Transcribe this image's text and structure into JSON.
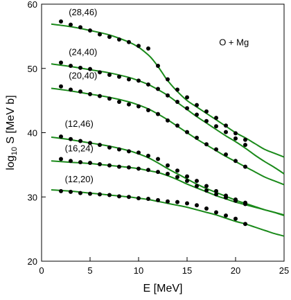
{
  "chart_data": {
    "type": "line",
    "title": "",
    "xlabel": "E [MeV]",
    "ylabel_parts": {
      "prefix": "log",
      "sub": "10",
      "suffix": " S [MeV b]"
    },
    "xlim": [
      0,
      25
    ],
    "ylim": [
      20,
      60
    ],
    "xticks": [
      0,
      5,
      10,
      15,
      20,
      25
    ],
    "yticks": [
      20,
      30,
      40,
      50,
      60
    ],
    "grid": false,
    "annotation": "O + Mg",
    "colors": {
      "curve": "#1a8a1a",
      "point": "#000000",
      "axis": "#000000"
    },
    "series": [
      {
        "name": "(28,46)",
        "label_at": [
          2.8,
          58.3
        ],
        "curve_x": [
          1,
          3,
          5,
          7,
          9,
          10,
          11,
          11.5,
          12,
          12.5,
          13,
          14,
          15,
          16,
          17,
          18,
          19,
          20,
          21,
          22,
          23,
          24,
          25
        ],
        "curve_y": [
          56.9,
          56.5,
          55.9,
          55.2,
          54.1,
          53.3,
          52.1,
          51.3,
          50.3,
          49.2,
          48.1,
          46.4,
          45.0,
          44.0,
          43.0,
          42.0,
          41.0,
          40.0,
          39.2,
          38.3,
          37.4,
          36.8,
          36.2
        ],
        "points_x": [
          2,
          3,
          4,
          5,
          6,
          7,
          8,
          9,
          10,
          11,
          12,
          13,
          14,
          15,
          16,
          17,
          18,
          19,
          20,
          21
        ],
        "points_y": [
          57.3,
          56.8,
          56.4,
          55.9,
          55.3,
          54.9,
          54.5,
          54.1,
          53.5,
          53.1,
          50.4,
          48.3,
          46.7,
          45.5,
          44.3,
          43.3,
          42.3,
          41.1,
          39.9,
          38.9
        ]
      },
      {
        "name": "(24,40)",
        "label_at": [
          2.8,
          52.1
        ],
        "curve_x": [
          1,
          3,
          5,
          7,
          9,
          10,
          11,
          12,
          13,
          14,
          15,
          16,
          17,
          18,
          19,
          20,
          21,
          22,
          23,
          24,
          25
        ],
        "curve_y": [
          50.7,
          50.3,
          49.8,
          49.3,
          48.6,
          48.1,
          47.5,
          46.7,
          45.8,
          44.7,
          43.6,
          42.5,
          41.5,
          40.5,
          39.5,
          38.6,
          37.6,
          36.5,
          35.5,
          34.6,
          33.6
        ],
        "points_x": [
          2,
          3,
          4,
          5,
          6,
          7,
          8,
          9,
          10,
          11,
          12,
          13,
          14,
          15,
          16,
          17,
          18,
          19,
          20,
          21
        ],
        "points_y": [
          50.9,
          50.4,
          50.1,
          49.9,
          49.4,
          49.0,
          48.7,
          48.3,
          48.1,
          47.5,
          46.8,
          45.8,
          44.8,
          43.8,
          42.8,
          41.8,
          41.0,
          40.1,
          39.1,
          38.1
        ]
      },
      {
        "name": "(20,40)",
        "label_at": [
          2.8,
          48.4
        ],
        "curve_x": [
          1,
          3,
          5,
          7,
          9,
          10,
          11,
          12,
          13,
          14,
          15,
          16,
          17,
          18,
          19,
          20,
          21,
          22,
          23,
          24,
          25
        ],
        "curve_y": [
          46.9,
          46.5,
          46.0,
          45.5,
          44.8,
          44.3,
          43.7,
          42.9,
          42.0,
          41.0,
          40.0,
          39.0,
          38.1,
          37.2,
          36.3,
          35.5,
          34.7,
          33.9,
          33.1,
          32.5,
          31.9
        ],
        "points_x": [
          2,
          3,
          4,
          5,
          6,
          7,
          8,
          9,
          10,
          11,
          12,
          13,
          14,
          15,
          16,
          17,
          18,
          19,
          20,
          21
        ],
        "points_y": [
          47.2,
          46.7,
          46.4,
          46.0,
          45.7,
          45.3,
          44.8,
          44.4,
          44.1,
          43.5,
          42.9,
          41.9,
          41.1,
          40.1,
          39.2,
          38.2,
          37.4,
          36.6,
          35.6,
          34.7
        ]
      },
      {
        "name": "(12,46)",
        "label_at": [
          2.4,
          40.9
        ],
        "curve_x": [
          1,
          3,
          5,
          7,
          9,
          10,
          11,
          12,
          13,
          14,
          15,
          16,
          17,
          18,
          19,
          20,
          21,
          22,
          23,
          24,
          25
        ],
        "curve_y": [
          39.3,
          38.9,
          38.4,
          37.9,
          37.2,
          36.7,
          36.1,
          35.3,
          34.4,
          33.6,
          32.8,
          32.0,
          31.3,
          30.7,
          30.1,
          29.5,
          29.0,
          28.5,
          28.0,
          27.6,
          27.2
        ],
        "points_x": [
          2,
          3,
          4,
          5,
          6,
          7,
          8,
          9,
          10,
          11,
          12,
          13,
          14,
          15,
          16,
          17,
          18,
          19,
          20,
          21
        ],
        "points_y": [
          39.4,
          39.0,
          38.7,
          38.4,
          38.1,
          37.7,
          37.4,
          37.1,
          36.9,
          36.4,
          35.9,
          34.9,
          34.1,
          33.2,
          32.5,
          31.7,
          30.9,
          30.2,
          29.6,
          29.1
        ]
      },
      {
        "name": "(16,24)",
        "label_at": [
          2.4,
          37.1
        ],
        "curve_x": [
          1,
          3,
          5,
          7,
          9,
          10,
          11,
          12,
          13,
          14,
          15,
          16,
          17,
          18,
          19,
          20,
          21,
          22,
          23,
          24,
          25
        ],
        "curve_y": [
          35.6,
          35.4,
          35.2,
          34.9,
          34.6,
          34.4,
          34.1,
          33.8,
          33.3,
          32.7,
          32.0,
          31.4,
          30.8,
          30.2,
          29.7,
          29.2,
          28.8,
          28.4,
          28.0,
          27.6,
          27.1
        ],
        "points_x": [
          2,
          3,
          4,
          5,
          6,
          7,
          8,
          9,
          10,
          11,
          12,
          13,
          14,
          15,
          16,
          17,
          18,
          19,
          20,
          21
        ],
        "points_y": [
          35.9,
          35.6,
          35.4,
          35.3,
          35.1,
          34.9,
          34.7,
          34.6,
          34.4,
          34.2,
          33.9,
          33.6,
          33.1,
          32.5,
          31.7,
          31.0,
          30.4,
          29.9,
          29.4,
          28.9
        ]
      },
      {
        "name": "(12,20)",
        "label_at": [
          2.4,
          32.3
        ],
        "curve_x": [
          1,
          3,
          5,
          7,
          9,
          10,
          11,
          12,
          13,
          14,
          15,
          16,
          17,
          18,
          19,
          20,
          21,
          22,
          23,
          24,
          25
        ],
        "curve_y": [
          31.1,
          30.9,
          30.6,
          30.3,
          30.0,
          29.8,
          29.6,
          29.3,
          29.0,
          28.7,
          28.4,
          28.0,
          27.6,
          27.2,
          26.7,
          26.2,
          25.8,
          25.3,
          24.8,
          24.3,
          23.9
        ],
        "points_x": [
          2,
          3,
          4,
          5,
          6,
          7,
          8,
          9,
          10,
          11,
          12,
          13,
          14,
          15,
          16,
          17,
          18,
          19,
          20,
          21
        ],
        "points_y": [
          30.9,
          30.8,
          30.6,
          30.5,
          30.4,
          30.3,
          30.1,
          30.0,
          29.8,
          29.7,
          29.5,
          29.3,
          29.2,
          29.0,
          28.7,
          28.2,
          27.6,
          27.1,
          26.6,
          25.8
        ]
      }
    ]
  }
}
